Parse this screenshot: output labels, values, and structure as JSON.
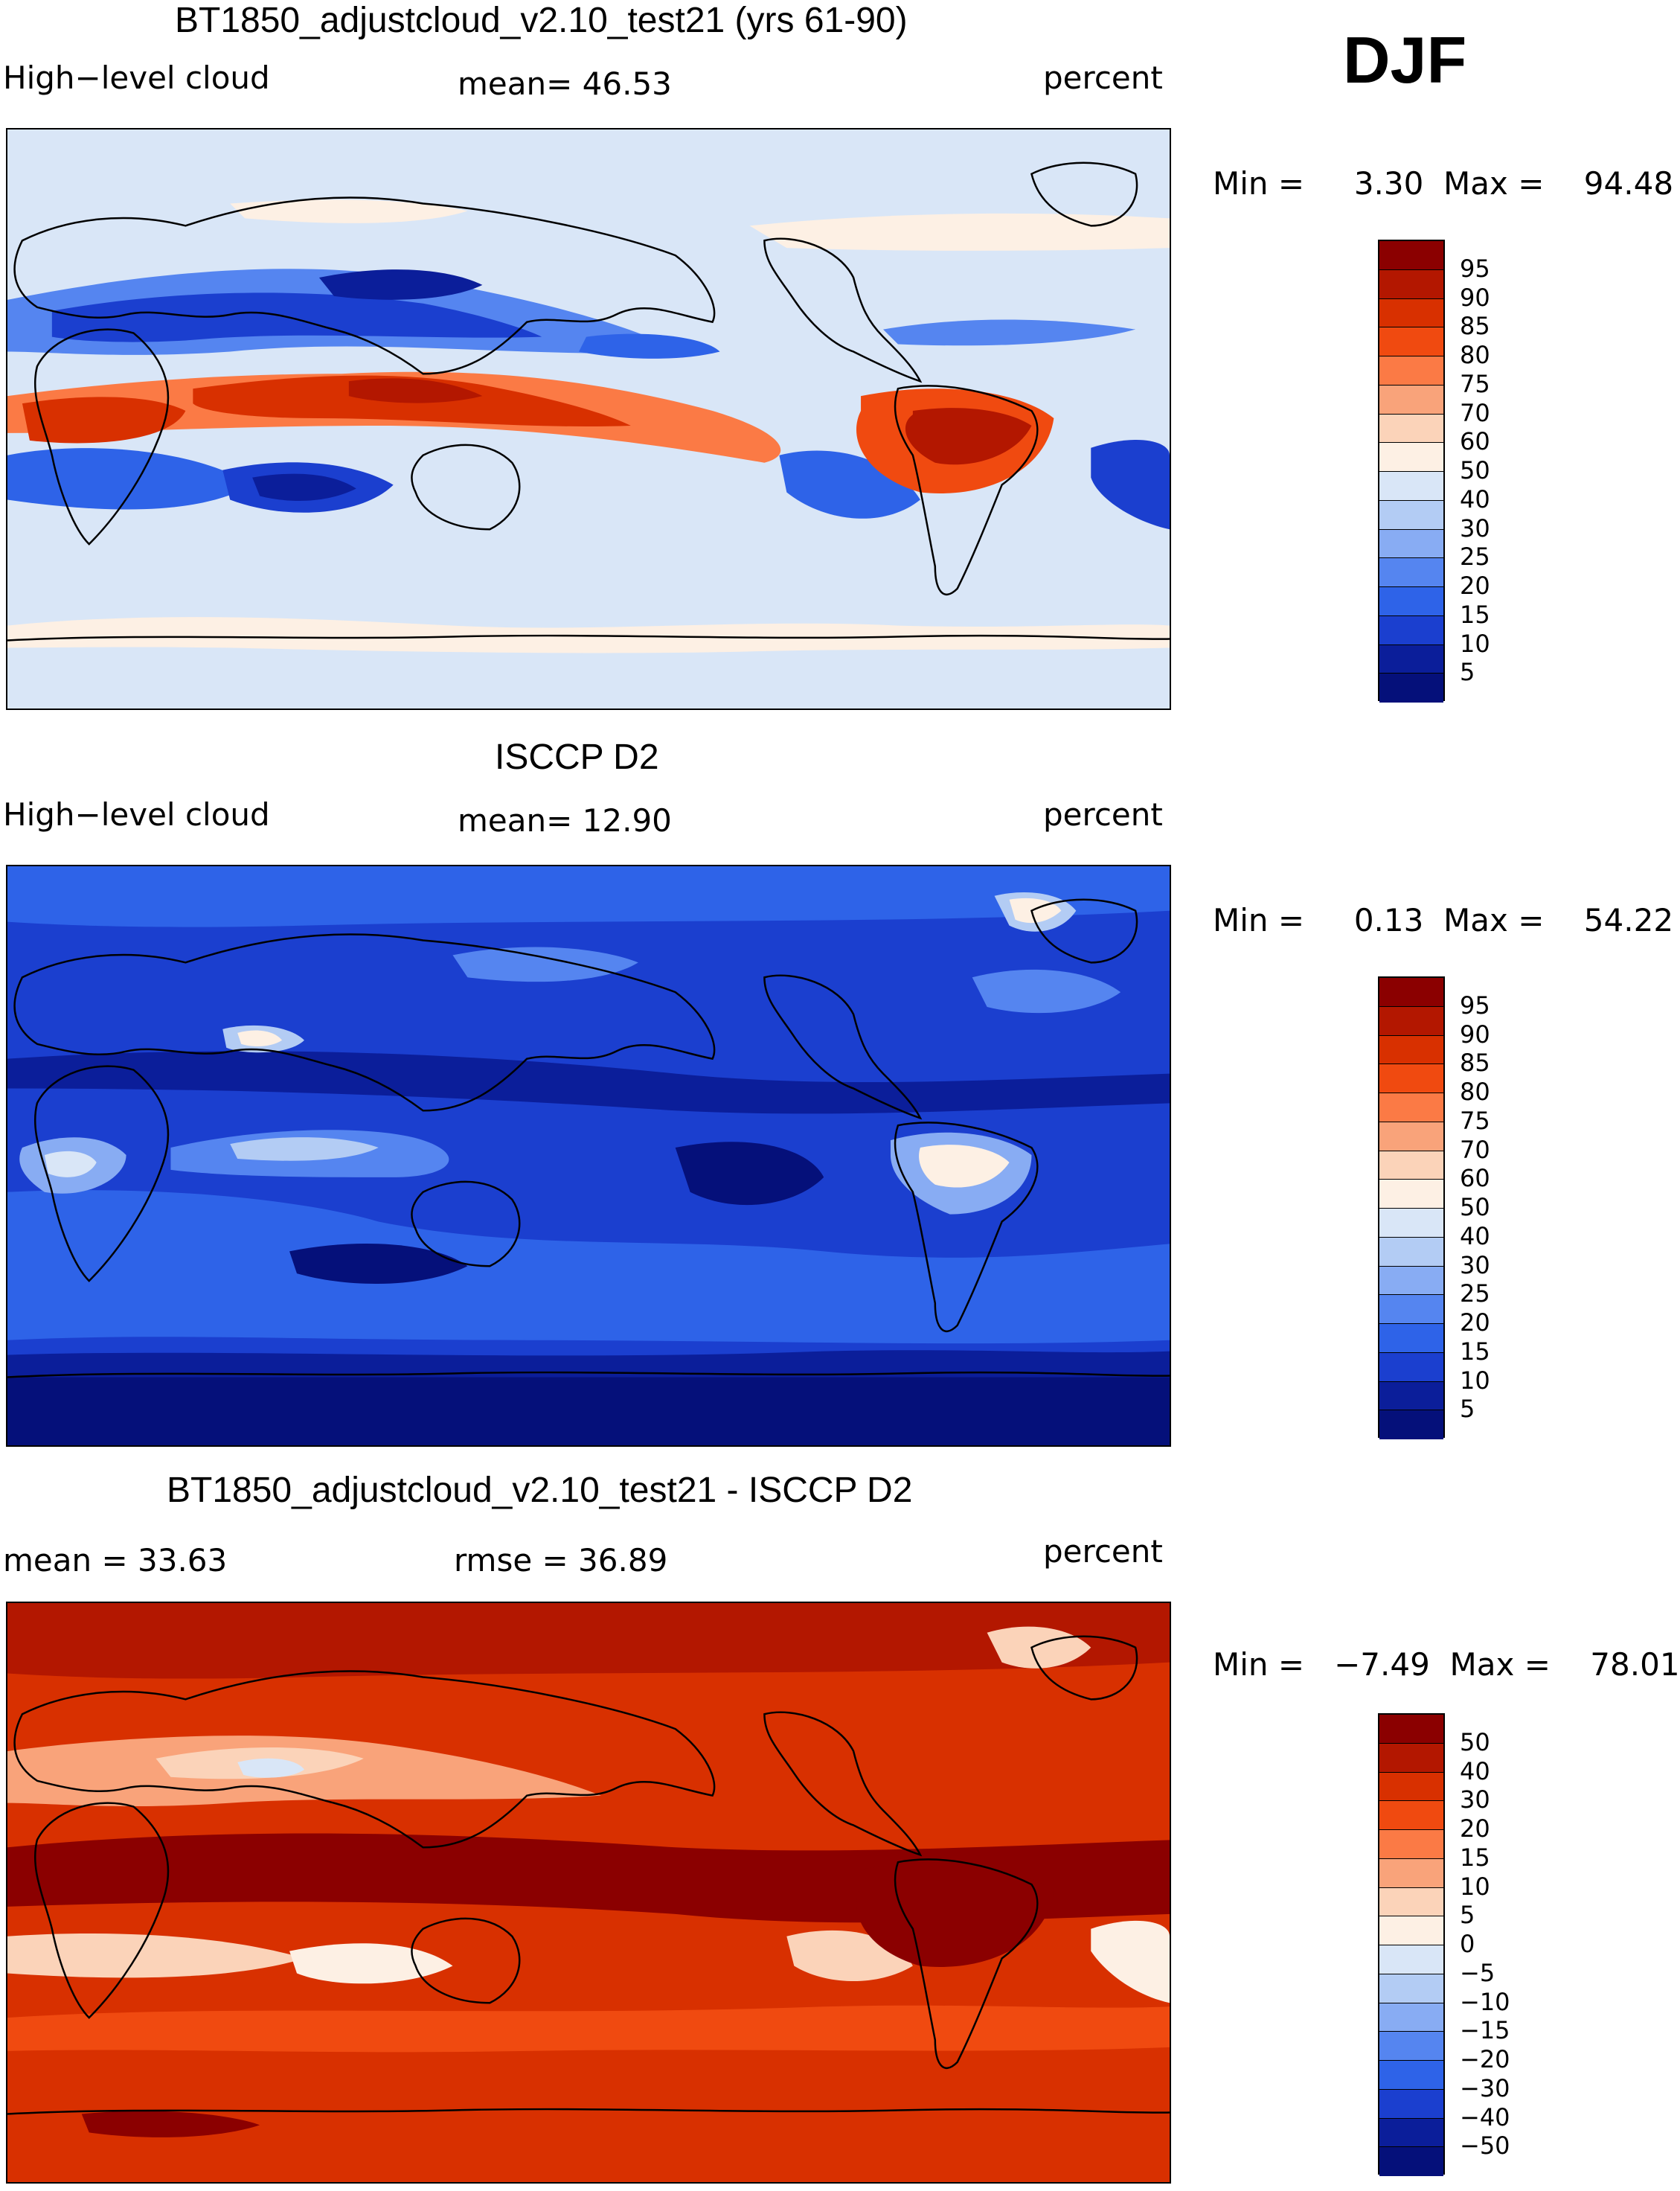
{
  "season": "DJF",
  "panels": [
    {
      "title": "BT1850_adjustcloud_v2.10_test21 (yrs 61-90)",
      "left_label": "High−level cloud",
      "center_label": "mean=   46.53",
      "right_label": "percent",
      "stats": "Min =     3.30  Max =    94.48",
      "legend_levels": [
        "95",
        "90",
        "85",
        "80",
        "75",
        "70",
        "60",
        "50",
        "40",
        "30",
        "25",
        "20",
        "15",
        "10",
        "5"
      ],
      "legend_colors": [
        "#8b0000",
        "#b31700",
        "#d83000",
        "#f04a10",
        "#fb7a45",
        "#f9a37a",
        "#fbd3b9",
        "#fdf0e4",
        "#d9e6f7",
        "#b3ccf4",
        "#88acf3",
        "#5585f0",
        "#2e63e8",
        "#1b3fcf",
        "#0b1e9a",
        "#05107a"
      ],
      "fields": "model"
    },
    {
      "title": "ISCCP D2",
      "left_label": "High−level cloud",
      "center_label": "mean=   12.90",
      "right_label": "percent",
      "stats": "Min =     0.13  Max =    54.22",
      "legend_levels": [
        "95",
        "90",
        "85",
        "80",
        "75",
        "70",
        "60",
        "50",
        "40",
        "30",
        "25",
        "20",
        "15",
        "10",
        "5"
      ],
      "legend_colors": [
        "#8b0000",
        "#b31700",
        "#d83000",
        "#f04a10",
        "#fb7a45",
        "#f9a37a",
        "#fbd3b9",
        "#fdf0e4",
        "#d9e6f7",
        "#b3ccf4",
        "#88acf3",
        "#5585f0",
        "#2e63e8",
        "#1b3fcf",
        "#0b1e9a",
        "#05107a"
      ],
      "fields": "obs"
    },
    {
      "title": "BT1850_adjustcloud_v2.10_test21 - ISCCP D2",
      "left_label": "mean  =    33.63",
      "center_label": "rmse  =    36.89",
      "right_label": "percent",
      "stats": "Min =   −7.49  Max =    78.01",
      "legend_levels": [
        "50",
        "40",
        "30",
        "20",
        "15",
        "10",
        "5",
        "0",
        "−5",
        "−10",
        "−15",
        "−20",
        "−30",
        "−40",
        "−50"
      ],
      "legend_colors": [
        "#8b0000",
        "#b31700",
        "#d83000",
        "#f04a10",
        "#fb7a45",
        "#f9a37a",
        "#fbd3b9",
        "#fdf0e4",
        "#d9e6f7",
        "#b3ccf4",
        "#88acf3",
        "#5585f0",
        "#2e63e8",
        "#1b3fcf",
        "#0b1e9a",
        "#05107a"
      ],
      "fields": "diff"
    }
  ]
}
